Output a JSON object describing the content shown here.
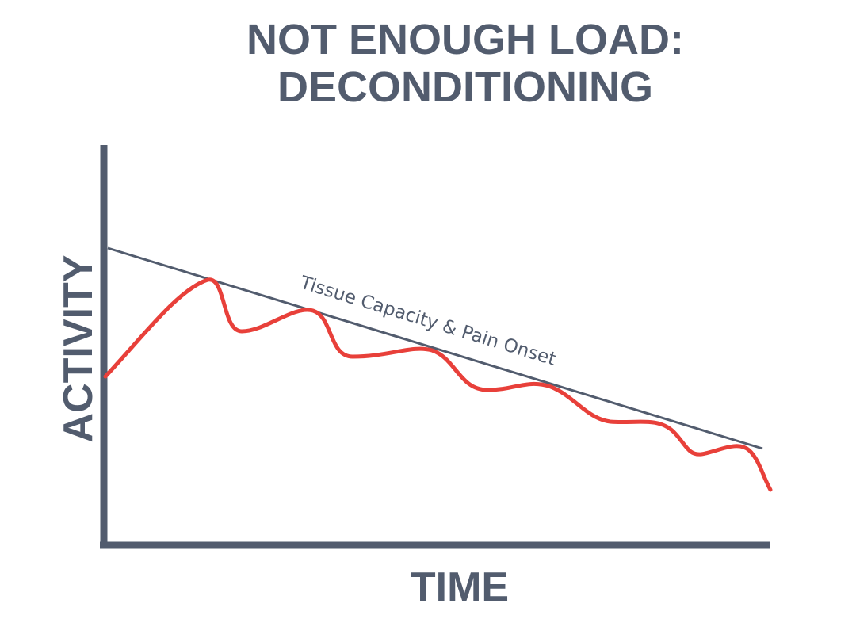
{
  "header": {
    "title_lines": [
      "NOT ENOUGH LOAD:",
      "DECONDITIONING"
    ]
  },
  "diagram": {
    "y_axis_label": "ACTIVITY",
    "x_axis_label": "TIME",
    "line_label": "Tissue Capacity & Pain Onset"
  }
}
